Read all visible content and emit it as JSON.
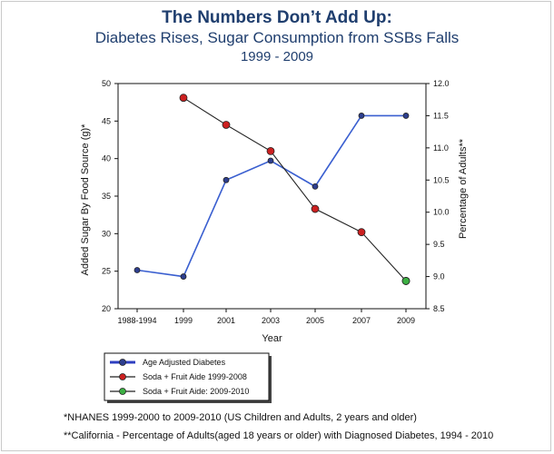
{
  "chart_data": {
    "type": "line",
    "title": "The Numbers Don’t Add Up:",
    "subtitle": "Diabetes Rises, Sugar Consumption from SSBs Falls",
    "period": "1999 - 2009",
    "xlabel": "Year",
    "ylabel_left": "Added Sugar By Food Source (g)*",
    "ylabel_right": "Percentage of Adults**",
    "categories": [
      "1988-1994",
      "1999",
      "2001",
      "2003",
      "2005",
      "2007",
      "2009"
    ],
    "y_left": {
      "ylim": [
        20,
        50
      ],
      "ticks": [
        "20",
        "25",
        "30",
        "35",
        "40",
        "45",
        "50"
      ]
    },
    "y_right": {
      "ylim": [
        8.5,
        12.0
      ],
      "ticks": [
        "8.5",
        "9.0",
        "9.5",
        "10.0",
        "10.5",
        "11.0",
        "11.5",
        "12.0"
      ]
    },
    "series": [
      {
        "name": "Age Adjusted Diabetes",
        "axis": "right",
        "line_color": "#3a5fd0",
        "marker_color": "#2e3f8f",
        "points": [
          {
            "x": "1988-1994",
            "y": 9.1
          },
          {
            "x": "1999",
            "y": 9.0
          },
          {
            "x": "2001",
            "y": 10.5
          },
          {
            "x": "2003",
            "y": 10.8
          },
          {
            "x": "2005",
            "y": 10.4
          },
          {
            "x": "2007",
            "y": 11.5
          },
          {
            "x": "2009",
            "y": 11.5
          }
        ]
      },
      {
        "name": "Soda + Fruit Aide 1999-2008",
        "axis": "left",
        "line_color": "#222222",
        "marker_color": "#cc2020",
        "points": [
          {
            "x": "1999",
            "y": 48.1
          },
          {
            "x": "2001",
            "y": 44.5
          },
          {
            "x": "2003",
            "y": 41.0
          },
          {
            "x": "2005",
            "y": 33.3
          },
          {
            "x": "2007",
            "y": 30.2
          },
          {
            "x": "2009",
            "y": 23.7
          }
        ]
      },
      {
        "name": "Soda + Fruit Aide: 2009-2010",
        "axis": "left",
        "line_color": "#222222",
        "marker_color": "#3cb043",
        "points": [
          {
            "x": "2009",
            "y": 23.7
          }
        ]
      }
    ],
    "legend": [
      {
        "label": "Age Adjusted Diabetes",
        "line_color": "#2f3fc0",
        "marker_color": "#2e3f8f",
        "bold_line": true
      },
      {
        "label": "Soda + Fruit Aide 1999-2008",
        "line_color": "#222222",
        "marker_color": "#cc2020",
        "bold_line": false
      },
      {
        "label": "Soda + Fruit Aide: 2009-2010",
        "line_color": "#222222",
        "marker_color": "#3cb043",
        "bold_line": false
      }
    ],
    "legend_position": "bottom-left"
  },
  "footnotes": {
    "note1": "*NHANES 1999-2000 to 2009-2010 (US Children and Adults, 2 years and older)",
    "note2": "**California - Percentage of Adults(aged 18 years or older) with Diagnosed Diabetes, 1994 - 2010"
  }
}
